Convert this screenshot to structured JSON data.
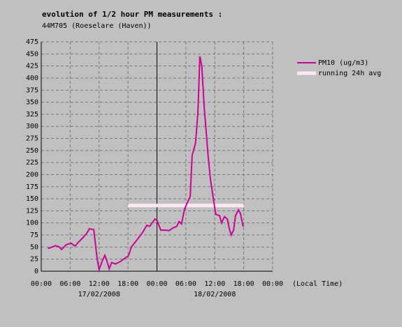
{
  "chart_data": {
    "type": "line",
    "title": "evolution of 1/2 hour PM measurements :",
    "subtitle": "44M705 (Roeselare (Haven))",
    "x_axis_label": "(Local Time)",
    "date_labels": [
      {
        "x": 12,
        "label": "17/02/2008"
      },
      {
        "x": 36,
        "label": "18/02/2008"
      }
    ],
    "xlim": [
      0,
      48
    ],
    "xticks": [
      {
        "value": 0,
        "label": "00:00"
      },
      {
        "value": 6,
        "label": "06:00"
      },
      {
        "value": 12,
        "label": "12:00"
      },
      {
        "value": 18,
        "label": "18:00"
      },
      {
        "value": 24,
        "label": "00:00"
      },
      {
        "value": 30,
        "label": "06:00"
      },
      {
        "value": 36,
        "label": "12:00"
      },
      {
        "value": 42,
        "label": "18:00"
      },
      {
        "value": 48,
        "label": "00:00"
      }
    ],
    "ylim": [
      0,
      475
    ],
    "yticks": [
      0,
      25,
      50,
      75,
      100,
      125,
      150,
      175,
      200,
      225,
      250,
      275,
      300,
      325,
      350,
      375,
      400,
      425,
      450,
      475
    ],
    "grid": true,
    "legend": "right",
    "series": [
      {
        "name": "PM10 (ug/m3)",
        "color": "#cc0099",
        "width": 2,
        "x": [
          1.4,
          3,
          3.8,
          4.2,
          5.2,
          6.2,
          7,
          7.7,
          8.5,
          9.4,
          10,
          10.9,
          11.2,
          11.6,
          12,
          12.6,
          13.2,
          13.6,
          14.1,
          14.6,
          15.4,
          16.4,
          17.5,
          18.1,
          18.7,
          19.3,
          20.1,
          21,
          21.9,
          22.5,
          23,
          23.6,
          24,
          24.8,
          25.9,
          26.5,
          27.4,
          28.1,
          28.6,
          29.1,
          29.7,
          30.3,
          30.9,
          31.3,
          32,
          32.5,
          32.9,
          33.3,
          33.8,
          34.2,
          34.6,
          35.1,
          35.7,
          36.2,
          37,
          37.4,
          38,
          38.6,
          39,
          39.4,
          39.9,
          40.3,
          40.9,
          41.3,
          41.9
        ],
        "values": [
          47,
          53,
          50,
          45,
          55,
          58,
          52,
          60,
          68,
          78,
          88,
          86,
          60,
          25,
          3,
          20,
          33,
          22,
          5,
          18,
          15,
          20,
          28,
          32,
          50,
          58,
          68,
          80,
          95,
          93,
          100,
          108,
          105,
          85,
          85,
          84,
          90,
          93,
          103,
          98,
          128,
          142,
          155,
          240,
          265,
          330,
          445,
          425,
          340,
          290,
          240,
          190,
          150,
          118,
          115,
          100,
          113,
          108,
          88,
          75,
          85,
          115,
          127,
          120,
          92
        ]
      },
      {
        "name": "running 24h avg",
        "color": "#ffe6f5",
        "width": 5,
        "x": [
          18,
          42
        ],
        "values": [
          136,
          136
        ]
      }
    ]
  }
}
